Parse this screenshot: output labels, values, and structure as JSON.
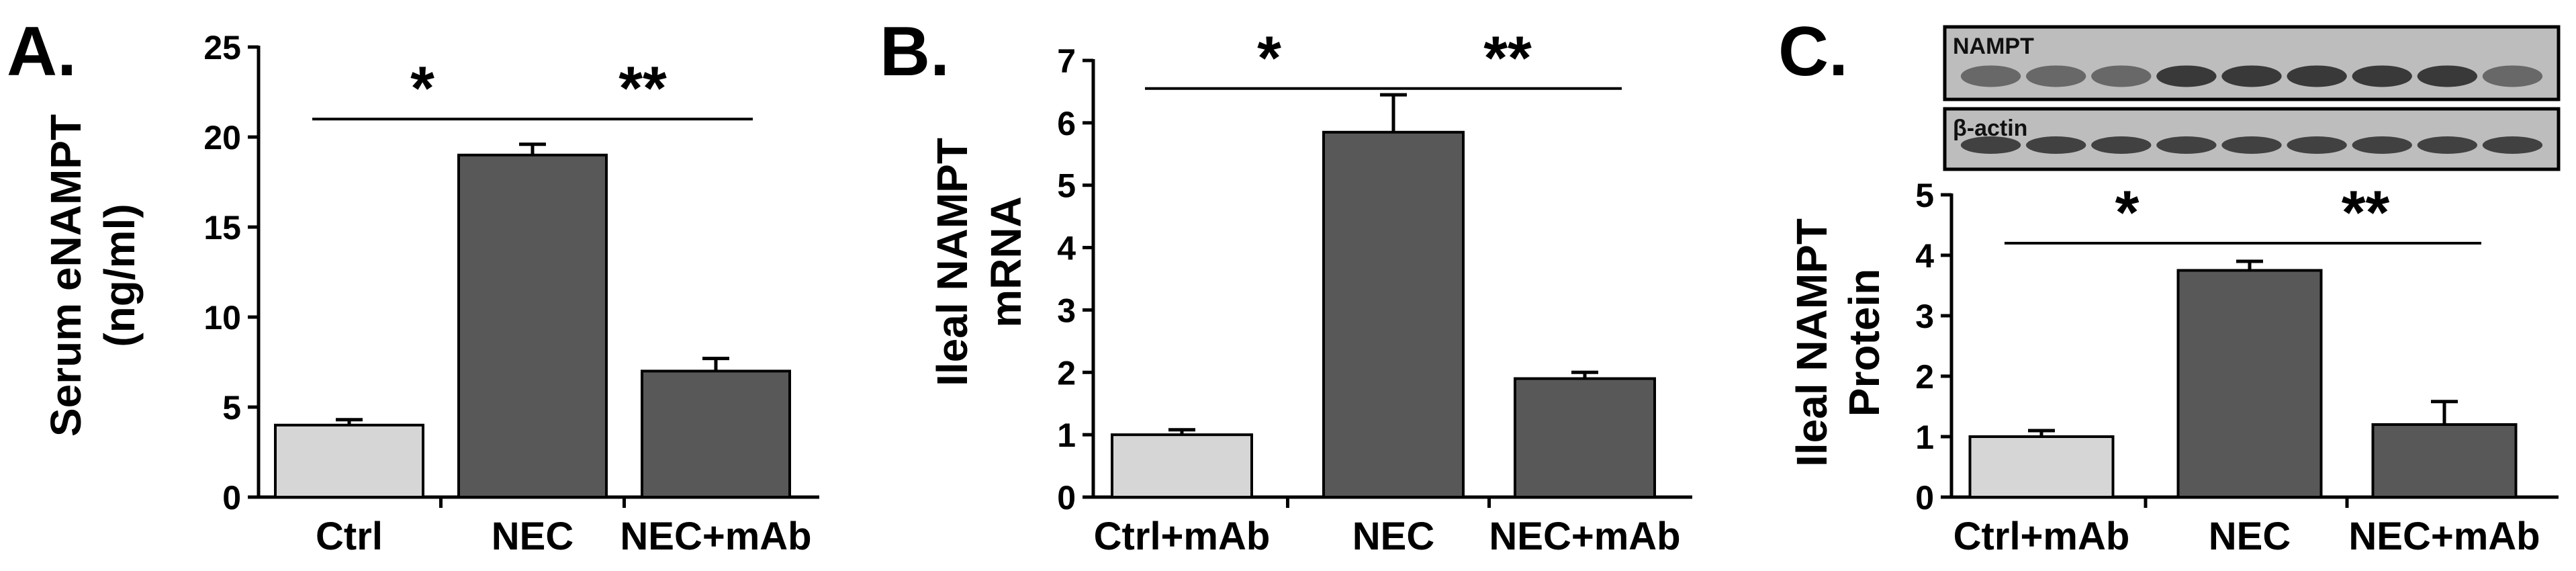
{
  "colors": {
    "light_bar": "#d6d6d6",
    "dark_bar": "#585858",
    "axis": "#000000"
  },
  "chart_data": [
    {
      "type": "bar",
      "panel_label": "A.",
      "ylabel_lines": [
        "Serum eNAMPT",
        "(ng/ml)"
      ],
      "ylim": [
        0,
        25
      ],
      "yticks": [
        0,
        5,
        10,
        15,
        20,
        25
      ],
      "categories": [
        "Ctrl",
        "NEC",
        "NEC+mAb"
      ],
      "values": [
        4.0,
        19.0,
        7.0
      ],
      "errors": [
        0.3,
        0.6,
        0.7
      ],
      "bar_colors": [
        "light",
        "dark",
        "dark"
      ],
      "significance": [
        {
          "from": 0,
          "to": 1,
          "label": "*",
          "level": 21
        },
        {
          "from": 1,
          "to": 2,
          "label": "**",
          "level": 21
        }
      ],
      "grid": false
    },
    {
      "type": "bar",
      "panel_label": "B.",
      "ylabel_lines": [
        "Ileal NAMPT",
        "mRNA"
      ],
      "ylim": [
        0,
        7
      ],
      "yticks": [
        0,
        1,
        2,
        3,
        4,
        5,
        6,
        7
      ],
      "categories": [
        "Ctrl+mAb",
        "NEC",
        "NEC+mAb"
      ],
      "values": [
        1.0,
        5.85,
        1.9
      ],
      "errors": [
        0.08,
        0.6,
        0.1
      ],
      "bar_colors": [
        "light",
        "dark",
        "dark"
      ],
      "significance": [
        {
          "from": 0,
          "to": 1,
          "label": "*",
          "level": 6.55
        },
        {
          "from": 1,
          "to": 2,
          "label": "**",
          "level": 6.55
        }
      ],
      "grid": false
    },
    {
      "type": "bar",
      "panel_label": "C.",
      "ylabel_lines": [
        "Ileal NAMPT",
        "Protein"
      ],
      "ylim": [
        0,
        5
      ],
      "yticks": [
        0,
        1,
        2,
        3,
        4,
        5
      ],
      "categories": [
        "Ctrl+mAb",
        "NEC",
        "NEC+mAb"
      ],
      "values": [
        1.0,
        3.75,
        1.2
      ],
      "errors": [
        0.1,
        0.15,
        0.38
      ],
      "bar_colors": [
        "light",
        "dark",
        "dark"
      ],
      "significance": [
        {
          "from": 0,
          "to": 1,
          "label": "*",
          "level": 4.2
        },
        {
          "from": 1,
          "to": 2,
          "label": "**",
          "level": 4.2
        }
      ],
      "grid": false,
      "blots": [
        {
          "label": "NAMPT",
          "lanes": 9
        },
        {
          "label": "β-actin",
          "lanes": 9
        }
      ]
    }
  ]
}
